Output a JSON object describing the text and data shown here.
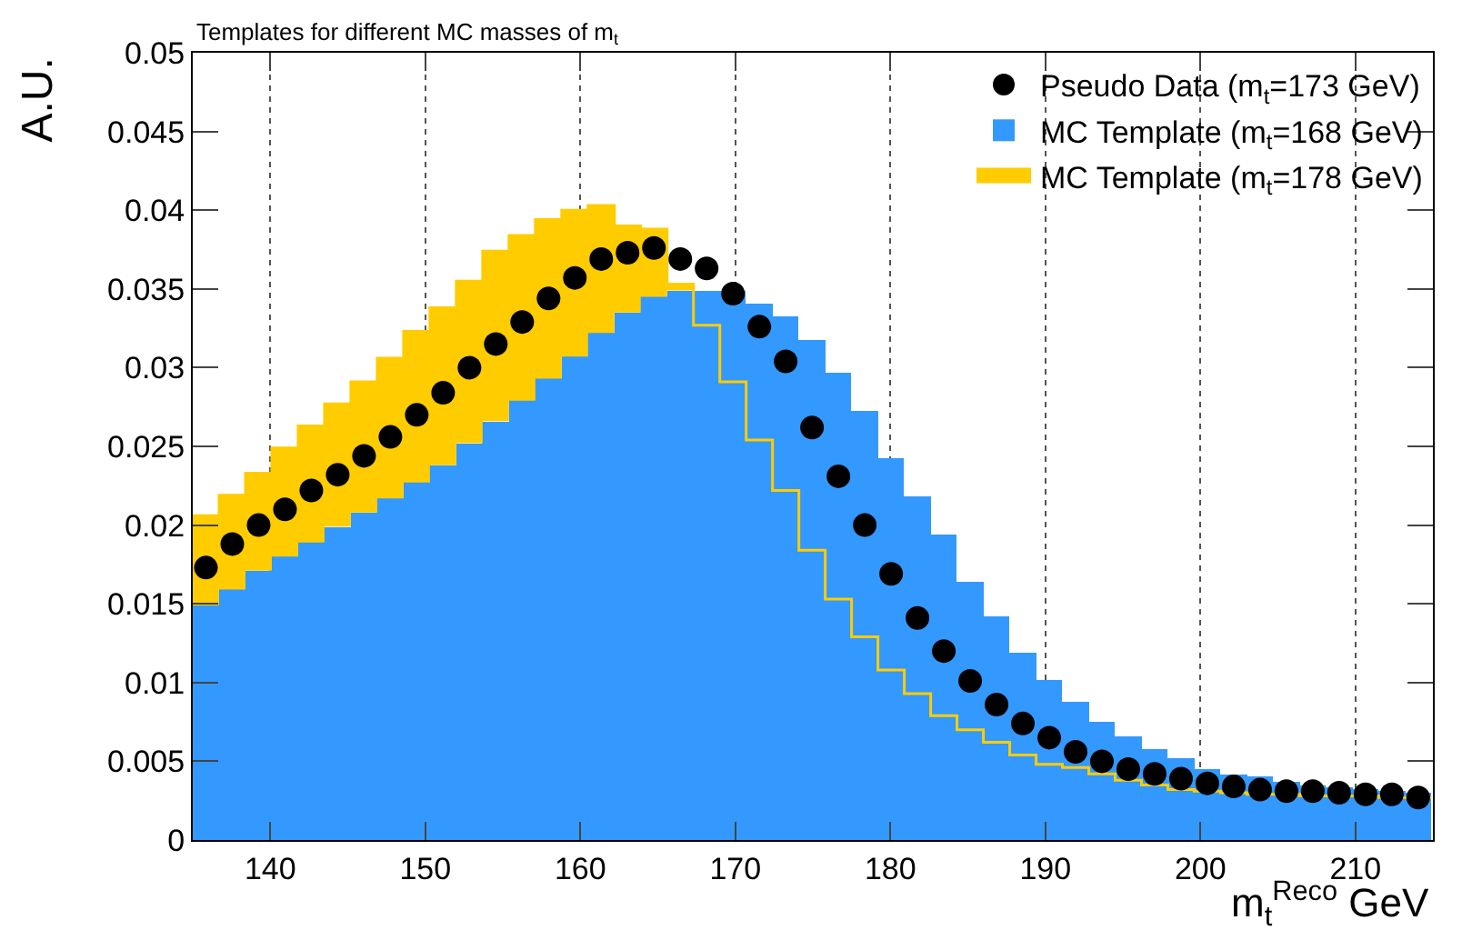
{
  "chart_data": {
    "type": "histogram",
    "title": "Templates for different MC masses of m$_{t}$",
    "xlabel": "m$_{t}$$^{Reco}$ GeV",
    "ylabel": "A.U.",
    "bins": [
      135.0,
      136.7,
      138.4,
      140.1,
      141.8,
      143.5,
      145.2,
      146.9,
      148.6,
      150.3,
      152.0,
      153.7,
      155.4,
      157.1,
      158.8,
      160.5,
      162.2,
      163.9,
      165.6,
      167.3,
      169.0,
      170.7,
      172.4,
      174.1,
      175.8,
      177.5,
      179.2,
      180.9,
      182.6,
      184.3,
      186.0,
      187.7,
      189.4,
      191.1,
      192.8,
      194.5,
      196.2,
      197.9,
      199.6,
      201.3,
      203.0,
      204.7,
      206.4,
      208.1,
      209.8,
      211.5,
      213.2,
      214.9
    ],
    "series": [
      {
        "name": "MC Template (m$_{t}$=178 GeV)",
        "color": "#ffcc00",
        "values": [
          0.0206,
          0.0219,
          0.0233,
          0.0249,
          0.0263,
          0.0277,
          0.0291,
          0.0306,
          0.0323,
          0.0338,
          0.0355,
          0.0374,
          0.0384,
          0.0394,
          0.04,
          0.0403,
          0.039,
          0.0388,
          0.0353,
          0.0327,
          0.0291,
          0.0254,
          0.0222,
          0.0184,
          0.0153,
          0.0129,
          0.0108,
          0.0093,
          0.0079,
          0.007,
          0.0062,
          0.0054,
          0.0048,
          0.0046,
          0.0042,
          0.0038,
          0.0035,
          0.0032,
          0.0031,
          0.003,
          0.0029,
          0.0029,
          0.0028,
          0.0028,
          0.0028,
          0.0027,
          0.0027
        ]
      },
      {
        "name": "MC Template (m$_{t}$=168 GeV)",
        "color": "#3399ff",
        "values": [
          0.0149,
          0.0159,
          0.0171,
          0.018,
          0.0189,
          0.0199,
          0.0208,
          0.0217,
          0.0227,
          0.0238,
          0.0252,
          0.0266,
          0.0279,
          0.0293,
          0.0307,
          0.0322,
          0.0335,
          0.0345,
          0.0349,
          0.0349,
          0.0349,
          0.0341,
          0.0333,
          0.0317,
          0.0297,
          0.0272,
          0.0243,
          0.0218,
          0.0194,
          0.0164,
          0.0142,
          0.0119,
          0.0102,
          0.0088,
          0.0075,
          0.0066,
          0.0058,
          0.0052,
          0.0045,
          0.0042,
          0.004,
          0.0037,
          0.0035,
          0.0033,
          0.0032,
          0.0031,
          0.003
        ]
      },
      {
        "name": "Pseudo Data (m$_{t}$=173 GeV)",
        "type": "scatter",
        "color": "#000000",
        "x": [
          135.85,
          137.55,
          139.25,
          140.95,
          142.65,
          144.35,
          146.05,
          147.75,
          149.45,
          151.15,
          152.85,
          154.55,
          156.25,
          157.95,
          159.65,
          161.35,
          163.05,
          164.75,
          166.45,
          168.15,
          169.85,
          171.55,
          173.25,
          174.95,
          176.65,
          178.35,
          180.05,
          181.75,
          183.45,
          185.15,
          186.85,
          188.55,
          190.25,
          191.95,
          193.65,
          195.35,
          197.05,
          198.75,
          200.45,
          202.15,
          203.85,
          205.55,
          207.25,
          208.95,
          210.65,
          212.35,
          214.05
        ],
        "values": [
          0.0173,
          0.0188,
          0.02,
          0.021,
          0.0222,
          0.0232,
          0.0244,
          0.0256,
          0.027,
          0.0284,
          0.03,
          0.0315,
          0.0329,
          0.0344,
          0.0357,
          0.0369,
          0.0373,
          0.0376,
          0.0369,
          0.0363,
          0.0347,
          0.0326,
          0.0304,
          0.0262,
          0.0231,
          0.02,
          0.0169,
          0.0141,
          0.012,
          0.0101,
          0.0086,
          0.0074,
          0.0065,
          0.0056,
          0.005,
          0.0045,
          0.0042,
          0.0039,
          0.0036,
          0.0034,
          0.0032,
          0.0031,
          0.0031,
          0.003,
          0.0029,
          0.0029,
          0.0027
        ]
      }
    ],
    "marker": "circle",
    "xlim": [
      135,
      215
    ],
    "xticks": [
      140,
      150,
      160,
      170,
      180,
      190,
      200,
      210
    ],
    "ylim": [
      0,
      0.05
    ],
    "yticks": [
      0,
      0.005,
      0.01,
      0.015,
      0.02,
      0.025,
      0.03,
      0.035,
      0.04,
      0.045,
      0.05
    ],
    "grid": "x",
    "legend": "top right"
  }
}
